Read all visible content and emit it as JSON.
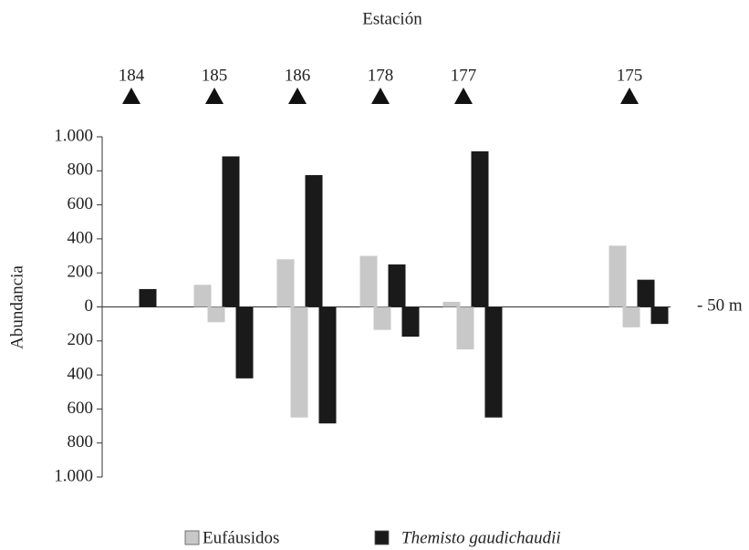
{
  "chart_data": {
    "type": "bar",
    "title": "Estación",
    "y_label": "Abundancia",
    "annotation": "- 50 m",
    "categories": [
      "184",
      "185",
      "186",
      "178",
      "177",
      null,
      "175"
    ],
    "series": [
      {
        "name": "Eufáusidos",
        "color": "#c8c8c8",
        "values": [
          null,
          130,
          280,
          300,
          30,
          null,
          360
        ],
        "values_below": [
          null,
          -90,
          -650,
          -135,
          -250,
          null,
          -120
        ]
      },
      {
        "name": "Themisto gaudichaudii",
        "color": "#1a1a1a",
        "values": [
          105,
          885,
          775,
          250,
          915,
          null,
          160
        ],
        "values_below": [
          null,
          -420,
          -685,
          -175,
          -650,
          null,
          -100
        ]
      }
    ],
    "ylim": [
      -1000,
      1000
    ],
    "yticks": [
      {
        "value": 1000,
        "label": "1.000"
      },
      800,
      600,
      400,
      200,
      0,
      {
        "value": -200,
        "label": "200"
      },
      {
        "value": -400,
        "label": "400"
      },
      {
        "value": -600,
        "label": "600"
      },
      {
        "value": -800,
        "label": "800"
      },
      {
        "value": -1000,
        "label": "1.000"
      }
    ],
    "grid": false,
    "legend": "bottom"
  }
}
